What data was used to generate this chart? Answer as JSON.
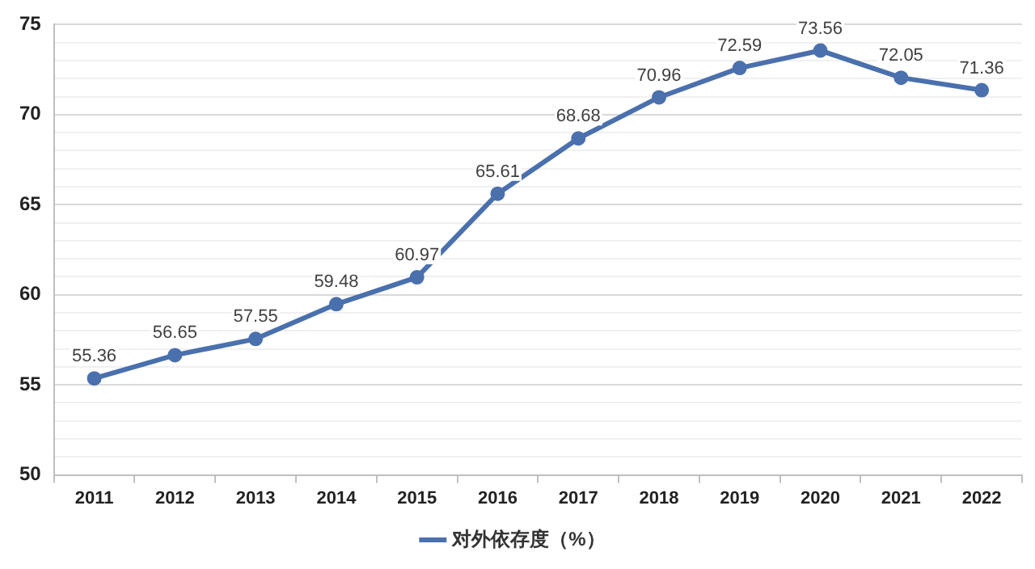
{
  "chart_data": {
    "type": "line",
    "categories": [
      "2011",
      "2012",
      "2013",
      "2014",
      "2015",
      "2016",
      "2017",
      "2018",
      "2019",
      "2020",
      "2021",
      "2022"
    ],
    "series": [
      {
        "name": "对外依存度（%）",
        "color": "#4a70ad",
        "values": [
          55.36,
          56.65,
          57.55,
          59.48,
          60.97,
          65.61,
          68.68,
          70.96,
          72.59,
          73.56,
          72.05,
          71.36
        ]
      }
    ],
    "ylim": [
      50,
      75
    ],
    "yticks": [
      50,
      {
        "value": 51,
        "label": null
      },
      {
        "value": 52,
        "label": null
      },
      {
        "value": 53,
        "label": null
      },
      {
        "value": 54,
        "label": null
      },
      55,
      {
        "value": 56,
        "label": null
      },
      {
        "value": 57,
        "label": null
      },
      {
        "value": 58,
        "label": null
      },
      {
        "value": 59,
        "label": null
      },
      60,
      {
        "value": 61,
        "label": null
      },
      {
        "value": 62,
        "label": null
      },
      {
        "value": 63,
        "label": null
      },
      {
        "value": 64,
        "label": null
      },
      65,
      {
        "value": 66,
        "label": null
      },
      {
        "value": 67,
        "label": null
      },
      {
        "value": 68,
        "label": null
      },
      {
        "value": 69,
        "label": null
      },
      70,
      {
        "value": 71,
        "label": null
      },
      {
        "value": 72,
        "label": null
      },
      {
        "value": 73,
        "label": null
      },
      {
        "value": 74,
        "label": null
      },
      75
    ],
    "grid": "y",
    "legend": "bottom",
    "marker": "circle",
    "line_style": "solid",
    "data_labels": true
  }
}
